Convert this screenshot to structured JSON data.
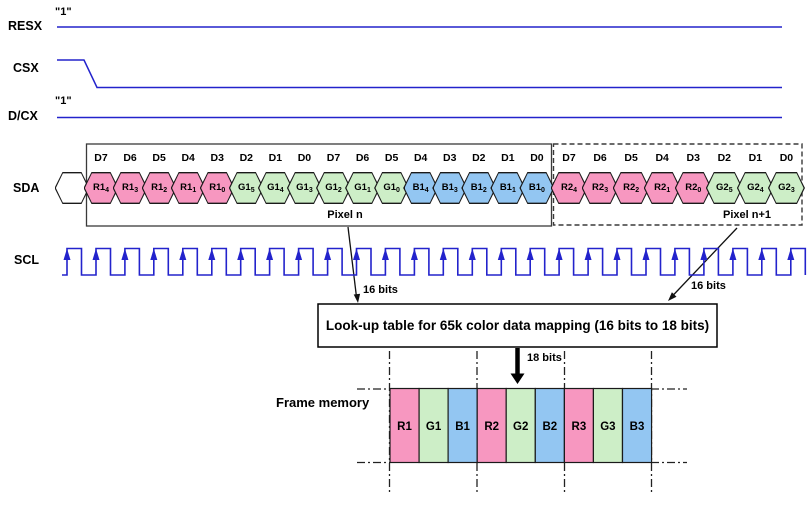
{
  "signals": {
    "resx": {
      "label": "RESX",
      "level": "\"1\""
    },
    "csx": {
      "label": "CSX"
    },
    "dcx": {
      "label": "D/CX",
      "level": "\"1\""
    },
    "sda": {
      "label": "SDA"
    },
    "scl": {
      "label": "SCL"
    }
  },
  "sda_stream": {
    "pixel_n_label": "Pixel n",
    "pixel_n_plus_1_label": "Pixel n+1",
    "bits": [
      {
        "bit": "D7",
        "name": "R1",
        "sub": "4",
        "color": "r"
      },
      {
        "bit": "D6",
        "name": "R1",
        "sub": "3",
        "color": "r"
      },
      {
        "bit": "D5",
        "name": "R1",
        "sub": "2",
        "color": "r"
      },
      {
        "bit": "D4",
        "name": "R1",
        "sub": "1",
        "color": "r"
      },
      {
        "bit": "D3",
        "name": "R1",
        "sub": "0",
        "color": "r"
      },
      {
        "bit": "D2",
        "name": "G1",
        "sub": "5",
        "color": "g"
      },
      {
        "bit": "D1",
        "name": "G1",
        "sub": "4",
        "color": "g"
      },
      {
        "bit": "D0",
        "name": "G1",
        "sub": "3",
        "color": "g"
      },
      {
        "bit": "D7",
        "name": "G1",
        "sub": "2",
        "color": "g"
      },
      {
        "bit": "D6",
        "name": "G1",
        "sub": "1",
        "color": "g"
      },
      {
        "bit": "D5",
        "name": "G1",
        "sub": "0",
        "color": "g"
      },
      {
        "bit": "D4",
        "name": "B1",
        "sub": "4",
        "color": "b"
      },
      {
        "bit": "D3",
        "name": "B1",
        "sub": "3",
        "color": "b"
      },
      {
        "bit": "D2",
        "name": "B1",
        "sub": "2",
        "color": "b"
      },
      {
        "bit": "D1",
        "name": "B1",
        "sub": "1",
        "color": "b"
      },
      {
        "bit": "D0",
        "name": "B1",
        "sub": "0",
        "color": "b"
      },
      {
        "bit": "D7",
        "name": "R2",
        "sub": "4",
        "color": "r"
      },
      {
        "bit": "D6",
        "name": "R2",
        "sub": "3",
        "color": "r"
      },
      {
        "bit": "D5",
        "name": "R2",
        "sub": "2",
        "color": "r"
      },
      {
        "bit": "D4",
        "name": "R2",
        "sub": "1",
        "color": "r"
      },
      {
        "bit": "D3",
        "name": "R2",
        "sub": "0",
        "color": "r"
      },
      {
        "bit": "D2",
        "name": "G2",
        "sub": "5",
        "color": "g"
      },
      {
        "bit": "D1",
        "name": "G2",
        "sub": "4",
        "color": "g"
      },
      {
        "bit": "D0",
        "name": "G2",
        "sub": "3",
        "color": "g"
      }
    ]
  },
  "annotations": {
    "bits16_left": "16 bits",
    "bits16_right": "16 bits",
    "bits18": "18 bits"
  },
  "lut_box": {
    "label": "Look-up table for 65k color data mapping (16 bits to 18 bits)"
  },
  "frame_memory": {
    "label": "Frame memory",
    "cells": [
      {
        "label": "R1",
        "color": "r"
      },
      {
        "label": "G1",
        "color": "g"
      },
      {
        "label": "B1",
        "color": "b"
      },
      {
        "label": "R2",
        "color": "r"
      },
      {
        "label": "G2",
        "color": "g"
      },
      {
        "label": "B2",
        "color": "b"
      },
      {
        "label": "R3",
        "color": "r"
      },
      {
        "label": "G3",
        "color": "g"
      },
      {
        "label": "B3",
        "color": "b"
      }
    ]
  },
  "palette": {
    "r": "#f797c0",
    "g": "#cdeec7",
    "b": "#93c6f2",
    "wave": "#2323cc",
    "ink": "#000000"
  }
}
